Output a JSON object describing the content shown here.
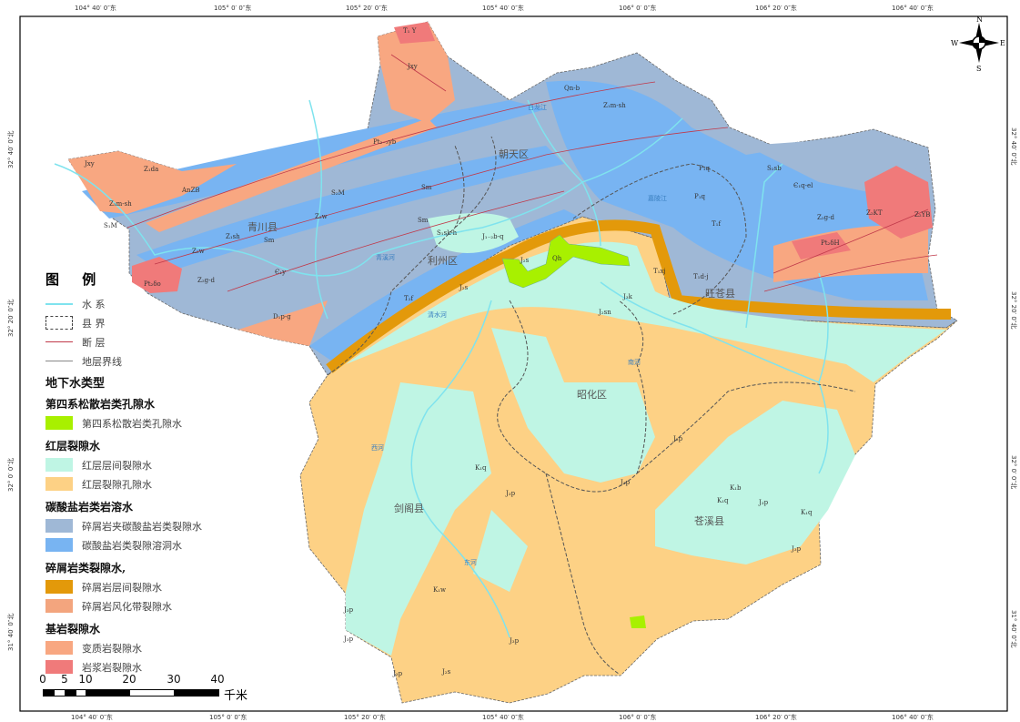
{
  "coords": {
    "lon": [
      "104° 40′ 0″东",
      "105° 0′ 0″东",
      "105° 20′ 0″东",
      "105° 40′ 0″东",
      "106° 0′ 0″东",
      "106° 20′ 0″东",
      "106° 40′ 0″东"
    ],
    "lat": [
      "32° 40′ 0″北",
      "32° 20′ 0″北",
      "32° 0′ 0″北",
      "31° 40′ 0″北"
    ]
  },
  "compass": {
    "n": "N",
    "s": "S",
    "e": "E",
    "w": "W"
  },
  "places": [
    "青川县",
    "朝天区",
    "利州区",
    "旺苍县",
    "昭化区",
    "剑阁县",
    "苍溪县"
  ],
  "geo_labels": [
    "T₁ Y",
    "Jxy",
    "Pt₂₋₃yb",
    "Jxy",
    "Z₁da",
    "AnZB",
    "Z₁m-sh",
    "S₁M",
    "Pt₂δo",
    "Z₂g-d",
    "Z₂w",
    "Z₁sh",
    "Sm",
    "S₂M",
    "Sm",
    "Sm",
    "Z₂w",
    "Є₁y",
    "D₁p-g",
    "Qn-b",
    "Z₁m-sh",
    "P₁q",
    "P₁q",
    "S₂sb",
    "Є₁q-el",
    "Z₂g-d",
    "Z₂KT",
    "Z₂YB",
    "Pt₂δH",
    "T₁f",
    "T₁xj",
    "T₁d-j",
    "J₁₋₂b-q",
    "S₁sk-h",
    "J₂s",
    "Qh",
    "J₂s",
    "T₂f",
    "J₃k",
    "J₂sn",
    "J₃p",
    "K₁q",
    "J₃p",
    "J₃p",
    "K₁b",
    "K₁q",
    "K₁q",
    "J₃p",
    "K₁w",
    "J₃p",
    "J₃p",
    "J₃p",
    "J₃p",
    "J₃p",
    "J₂s"
  ],
  "rivers": [
    "白龙江",
    "嘉陵江",
    "青溪河",
    "清水河",
    "南河",
    "西河",
    "东河"
  ],
  "legend": {
    "title": "图 例",
    "lines": [
      {
        "label": "水  系",
        "color": "#7fe3ee"
      },
      {
        "label": "县  界",
        "color": "#444444"
      },
      {
        "label": "断  层",
        "color": "#c0394a"
      },
      {
        "label": "地层界线",
        "color": "#888888"
      }
    ],
    "heading": "地下水类型",
    "groups": [
      {
        "title": "第四系松散岩类孔隙水",
        "items": [
          {
            "label": "第四系松散岩类孔隙水",
            "color": "#a8f000"
          }
        ]
      },
      {
        "title": "红层裂隙水",
        "items": [
          {
            "label": "红层层间裂隙水",
            "color": "#bff5e4"
          },
          {
            "label": "红层裂隙孔隙水",
            "color": "#fdd185"
          }
        ]
      },
      {
        "title": "碳酸盐岩类岩溶水",
        "items": [
          {
            "label": "碎屑岩夹碳酸盐岩类裂隙水",
            "color": "#9fb8d6"
          },
          {
            "label": "碳酸盐岩类裂隙溶洞水",
            "color": "#78b4f2"
          }
        ]
      },
      {
        "title": "碎屑岩类裂隙水,",
        "items": [
          {
            "label": "碎屑岩层间裂隙水",
            "color": "#e3990a"
          },
          {
            "label": "碎屑岩风化带裂隙水",
            "color": "#f3a57e"
          }
        ]
      },
      {
        "title": "基岩裂隙水",
        "items": [
          {
            "label": "变质岩裂隙水",
            "color": "#f8a781"
          },
          {
            "label": "岩浆岩裂隙水",
            "color": "#f07a7a"
          }
        ]
      }
    ]
  },
  "scale": {
    "ticks": [
      "0",
      "5",
      "10",
      "20",
      "30",
      "40"
    ],
    "unit": "千米"
  }
}
